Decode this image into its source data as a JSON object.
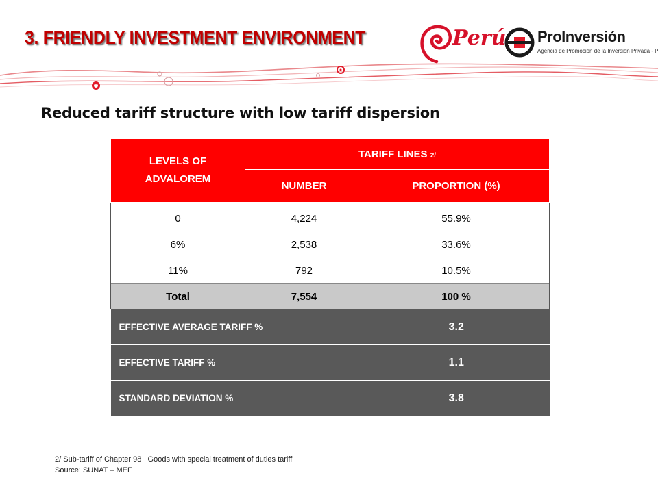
{
  "header": {
    "title": "3. FRIENDLY INVESTMENT ENVIRONMENT",
    "logo_peru": "Perú",
    "logo_proinversion": "ProInversión",
    "logo_proinversion_tagline": "Agencia de Promoción de la Inversión Privada - Perú",
    "colors": {
      "title": "#c00000",
      "brand_red": "#ff0000",
      "dark_row": "#595959",
      "total_row": "#c9c9c9"
    }
  },
  "subtitle": "Reduced tariff structure with low tariff dispersion",
  "table": {
    "col_levels": "LEVELS OF ADVALOREM",
    "col_tariff_lines": "TARIFF LINES",
    "col_tariff_lines_note": "2/",
    "col_number": "NUMBER",
    "col_proportion": "PROPORTION (%)",
    "rows": [
      {
        "level": "0",
        "number": "4,224",
        "proportion": "55.9%"
      },
      {
        "level": "6%",
        "number": "2,538",
        "proportion": "33.6%"
      },
      {
        "level": "11%",
        "number": "792",
        "proportion": "10.5%"
      }
    ],
    "total": {
      "label": "Total",
      "number": "7,554",
      "proportion": "100 %"
    },
    "summary": [
      {
        "label": "EFFECTIVE AVERAGE TARIFF %",
        "value": "3.2"
      },
      {
        "label": "EFFECTIVE TARIFF %",
        "value": "1.1"
      },
      {
        "label": "STANDARD DEVIATION %",
        "value": "3.8"
      }
    ]
  },
  "footnotes": {
    "note": "2/ Sub-tariff of Chapter 98   Goods with special treatment of duties tariff",
    "source": "Source: SUNAT – MEF"
  }
}
